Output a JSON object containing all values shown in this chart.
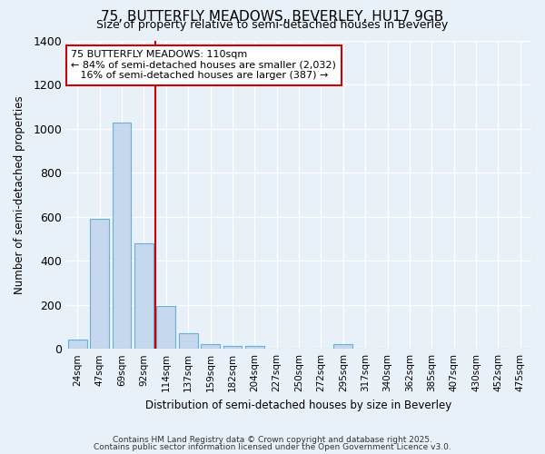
{
  "title1": "75, BUTTERFLY MEADOWS, BEVERLEY, HU17 9GB",
  "title2": "Size of property relative to semi-detached houses in Beverley",
  "xlabel": "Distribution of semi-detached houses by size in Beverley",
  "ylabel": "Number of semi-detached properties",
  "categories": [
    "24sqm",
    "47sqm",
    "69sqm",
    "92sqm",
    "114sqm",
    "137sqm",
    "159sqm",
    "182sqm",
    "204sqm",
    "227sqm",
    "250sqm",
    "272sqm",
    "295sqm",
    "317sqm",
    "340sqm",
    "362sqm",
    "385sqm",
    "407sqm",
    "430sqm",
    "452sqm",
    "475sqm"
  ],
  "values": [
    40,
    590,
    1030,
    480,
    195,
    70,
    22,
    15,
    15,
    0,
    0,
    0,
    20,
    0,
    0,
    0,
    0,
    0,
    0,
    0,
    0
  ],
  "bar_color": "#c5d8ee",
  "bar_edge_color": "#6baed6",
  "red_line_index": 3.5,
  "property_label": "75 BUTTERFLY MEADOWS: 110sqm",
  "smaller_pct": "84% of semi-detached houses are smaller (2,032)",
  "larger_pct": "16% of semi-detached houses are larger (387) →",
  "smaller_arrow": "← ",
  "annotation_box_color": "#ffffff",
  "annotation_border_color": "#cc0000",
  "ylim": [
    0,
    1400
  ],
  "yticks": [
    0,
    200,
    400,
    600,
    800,
    1000,
    1200,
    1400
  ],
  "bg_color": "#e8f0f8",
  "grid_color": "#d0dce8",
  "footer1": "Contains HM Land Registry data © Crown copyright and database right 2025.",
  "footer2": "Contains public sector information licensed under the Open Government Licence v3.0."
}
